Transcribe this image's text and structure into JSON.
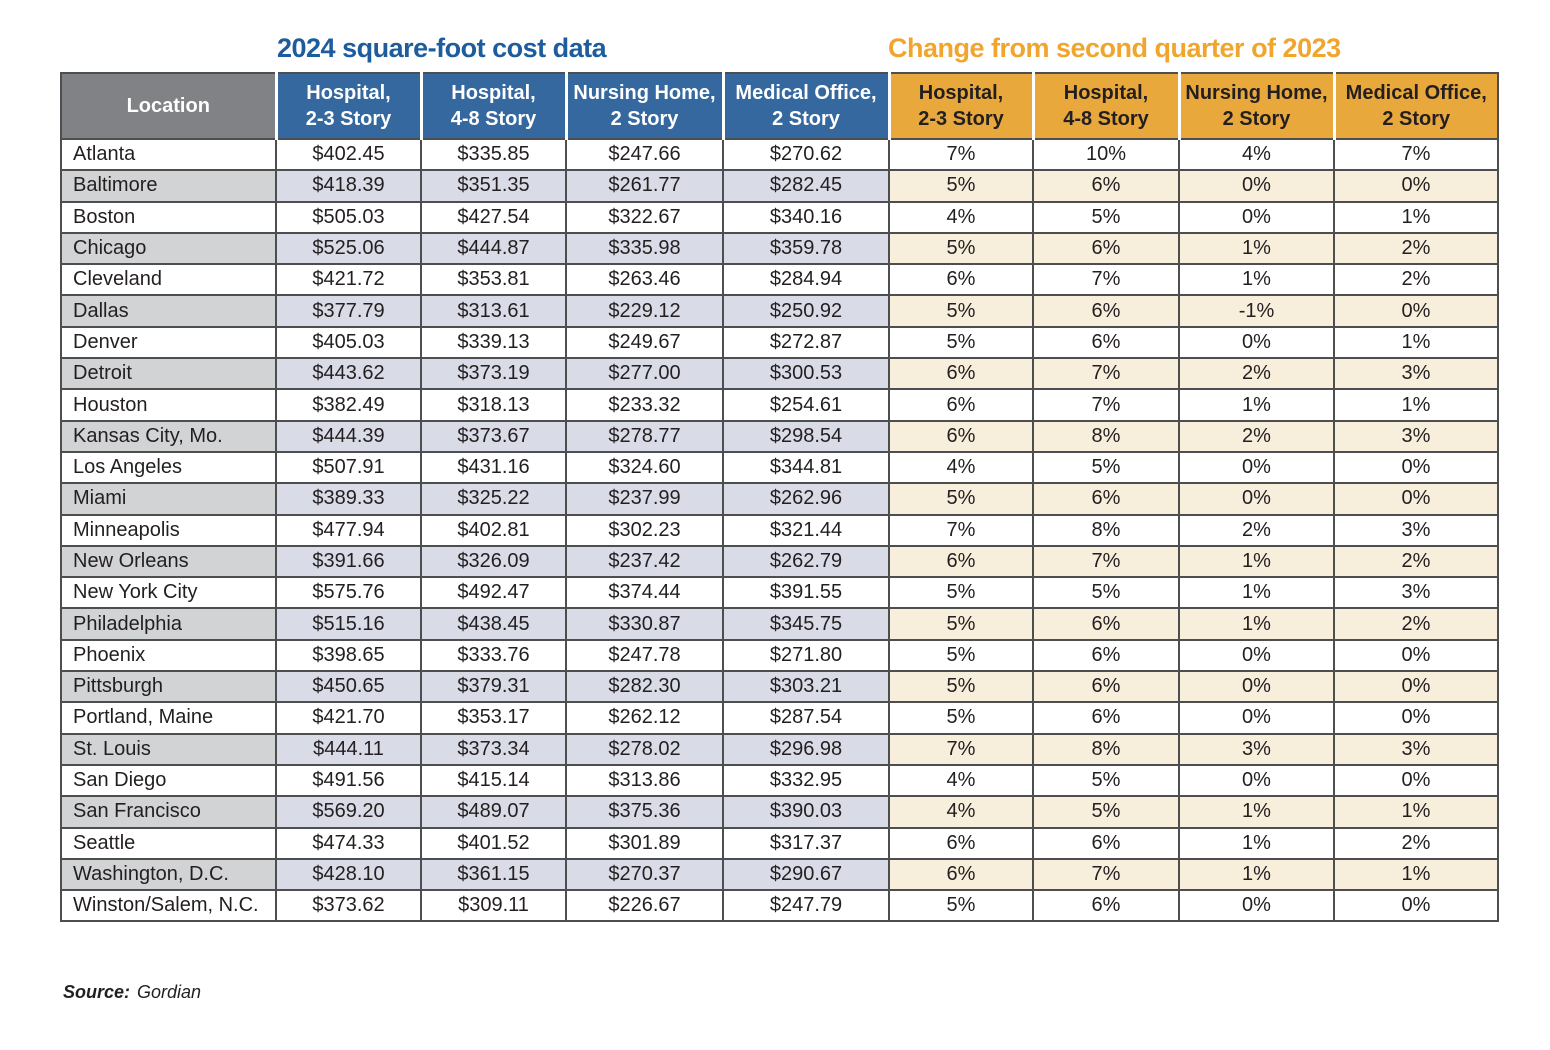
{
  "chart_data": {
    "type": "table",
    "section_titles": {
      "costs": "2024 square-foot cost data",
      "changes": "Change from second quarter of 2023"
    },
    "location_header": "Location",
    "cost_headers": [
      {
        "line1": "Hospital,",
        "line2": "2-3 Story"
      },
      {
        "line1": "Hospital,",
        "line2": "4-8 Story"
      },
      {
        "line1": "Nursing Home,",
        "line2": "2 Story"
      },
      {
        "line1": "Medical Office,",
        "line2": "2 Story"
      }
    ],
    "change_headers": [
      {
        "line1": "Hospital,",
        "line2": "2-3 Story"
      },
      {
        "line1": "Hospital,",
        "line2": "4-8 Story"
      },
      {
        "line1": "Nursing Home,",
        "line2": "2 Story"
      },
      {
        "line1": "Medical Office,",
        "line2": "2 Story"
      }
    ],
    "rows": [
      {
        "location": "Atlanta",
        "costs": [
          "$402.45",
          "$335.85",
          "$247.66",
          "$270.62"
        ],
        "changes": [
          "7%",
          "10%",
          "4%",
          "7%"
        ]
      },
      {
        "location": "Baltimore",
        "costs": [
          "$418.39",
          "$351.35",
          "$261.77",
          "$282.45"
        ],
        "changes": [
          "5%",
          "6%",
          "0%",
          "0%"
        ]
      },
      {
        "location": "Boston",
        "costs": [
          "$505.03",
          "$427.54",
          "$322.67",
          "$340.16"
        ],
        "changes": [
          "4%",
          "5%",
          "0%",
          "1%"
        ]
      },
      {
        "location": "Chicago",
        "costs": [
          "$525.06",
          "$444.87",
          "$335.98",
          "$359.78"
        ],
        "changes": [
          "5%",
          "6%",
          "1%",
          "2%"
        ]
      },
      {
        "location": "Cleveland",
        "costs": [
          "$421.72",
          "$353.81",
          "$263.46",
          "$284.94"
        ],
        "changes": [
          "6%",
          "7%",
          "1%",
          "2%"
        ]
      },
      {
        "location": "Dallas",
        "costs": [
          "$377.79",
          "$313.61",
          "$229.12",
          "$250.92"
        ],
        "changes": [
          "5%",
          "6%",
          "-1%",
          "0%"
        ]
      },
      {
        "location": "Denver",
        "costs": [
          "$405.03",
          "$339.13",
          "$249.67",
          "$272.87"
        ],
        "changes": [
          "5%",
          "6%",
          "0%",
          "1%"
        ]
      },
      {
        "location": "Detroit",
        "costs": [
          "$443.62",
          "$373.19",
          "$277.00",
          "$300.53"
        ],
        "changes": [
          "6%",
          "7%",
          "2%",
          "3%"
        ]
      },
      {
        "location": "Houston",
        "costs": [
          "$382.49",
          "$318.13",
          "$233.32",
          "$254.61"
        ],
        "changes": [
          "6%",
          "7%",
          "1%",
          "1%"
        ]
      },
      {
        "location": "Kansas City, Mo.",
        "costs": [
          "$444.39",
          "$373.67",
          "$278.77",
          "$298.54"
        ],
        "changes": [
          "6%",
          "8%",
          "2%",
          "3%"
        ]
      },
      {
        "location": "Los Angeles",
        "costs": [
          "$507.91",
          "$431.16",
          "$324.60",
          "$344.81"
        ],
        "changes": [
          "4%",
          "5%",
          "0%",
          "0%"
        ]
      },
      {
        "location": "Miami",
        "costs": [
          "$389.33",
          "$325.22",
          "$237.99",
          "$262.96"
        ],
        "changes": [
          "5%",
          "6%",
          "0%",
          "0%"
        ]
      },
      {
        "location": "Minneapolis",
        "costs": [
          "$477.94",
          "$402.81",
          "$302.23",
          "$321.44"
        ],
        "changes": [
          "7%",
          "8%",
          "2%",
          "3%"
        ]
      },
      {
        "location": "New Orleans",
        "costs": [
          "$391.66",
          "$326.09",
          "$237.42",
          "$262.79"
        ],
        "changes": [
          "6%",
          "7%",
          "1%",
          "2%"
        ]
      },
      {
        "location": "New York City",
        "costs": [
          "$575.76",
          "$492.47",
          "$374.44",
          "$391.55"
        ],
        "changes": [
          "5%",
          "5%",
          "1%",
          "3%"
        ]
      },
      {
        "location": "Philadelphia",
        "costs": [
          "$515.16",
          "$438.45",
          "$330.87",
          "$345.75"
        ],
        "changes": [
          "5%",
          "6%",
          "1%",
          "2%"
        ]
      },
      {
        "location": "Phoenix",
        "costs": [
          "$398.65",
          "$333.76",
          "$247.78",
          "$271.80"
        ],
        "changes": [
          "5%",
          "6%",
          "0%",
          "0%"
        ]
      },
      {
        "location": "Pittsburgh",
        "costs": [
          "$450.65",
          "$379.31",
          "$282.30",
          "$303.21"
        ],
        "changes": [
          "5%",
          "6%",
          "0%",
          "0%"
        ]
      },
      {
        "location": "Portland, Maine",
        "costs": [
          "$421.70",
          "$353.17",
          "$262.12",
          "$287.54"
        ],
        "changes": [
          "5%",
          "6%",
          "0%",
          "0%"
        ]
      },
      {
        "location": "St. Louis",
        "costs": [
          "$444.11",
          "$373.34",
          "$278.02",
          "$296.98"
        ],
        "changes": [
          "7%",
          "8%",
          "3%",
          "3%"
        ]
      },
      {
        "location": "San Diego",
        "costs": [
          "$491.56",
          "$415.14",
          "$313.86",
          "$332.95"
        ],
        "changes": [
          "4%",
          "5%",
          "0%",
          "0%"
        ]
      },
      {
        "location": "San Francisco",
        "costs": [
          "$569.20",
          "$489.07",
          "$375.36",
          "$390.03"
        ],
        "changes": [
          "4%",
          "5%",
          "1%",
          "1%"
        ]
      },
      {
        "location": "Seattle",
        "costs": [
          "$474.33",
          "$401.52",
          "$301.89",
          "$317.37"
        ],
        "changes": [
          "6%",
          "6%",
          "1%",
          "2%"
        ]
      },
      {
        "location": "Washington, D.C.",
        "costs": [
          "$428.10",
          "$361.15",
          "$270.37",
          "$290.67"
        ],
        "changes": [
          "6%",
          "7%",
          "1%",
          "1%"
        ]
      },
      {
        "location": "Winston/Salem, N.C.",
        "costs": [
          "$373.62",
          "$309.11",
          "$226.67",
          "$247.79"
        ],
        "changes": [
          "5%",
          "6%",
          "0%",
          "0%"
        ]
      }
    ]
  },
  "source": {
    "label": "Source:",
    "value": "Gordian"
  },
  "colors": {
    "title_blue": "#1d5c9d",
    "title_gold": "#f0a52f",
    "header_blue": "#34689e",
    "header_gold": "#e9a83b",
    "header_gray": "#808285",
    "row_shade_gray": "#d1d3d4",
    "row_shade_lavender": "#d9dbe7",
    "row_shade_cream": "#f8eedc",
    "border": "#4d4e50"
  }
}
